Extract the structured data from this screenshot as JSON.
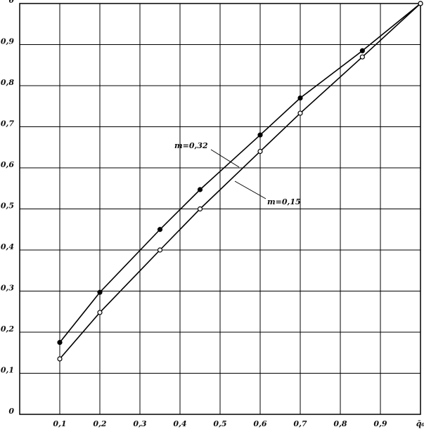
{
  "chart_data": {
    "type": "line",
    "x": [
      0.1,
      0.2,
      0.35,
      0.45,
      0.6,
      0.7,
      0.855,
      1
    ],
    "series": [
      {
        "name": "m=0,32",
        "color": "#000000",
        "marker": "filled",
        "values": [
          0.175,
          0.297,
          0.45,
          0.547,
          0.68,
          0.77,
          0.885,
          1
        ]
      },
      {
        "name": "m=0,15",
        "color": "#000000",
        "marker": "open",
        "values": [
          0.135,
          0.248,
          0.4,
          0.5,
          0.64,
          0.733,
          0.87,
          1
        ]
      }
    ],
    "xlim": [
      0,
      1
    ],
    "xticks": [
      {
        "value": 0.1,
        "label": "0,1"
      },
      {
        "value": 0.2,
        "label": "0,2"
      },
      {
        "value": 0.3,
        "label": "0,3"
      },
      {
        "value": 0.4,
        "label": "0,4"
      },
      {
        "value": 0.5,
        "label": "0,5"
      },
      {
        "value": 0.6,
        "label": "0,6"
      },
      {
        "value": 0.7,
        "label": "0,7"
      },
      {
        "value": 0.8,
        "label": "0,8"
      },
      {
        "value": 0.9,
        "label": "0,9"
      },
      {
        "value": 1,
        "label": "q̄₀"
      }
    ],
    "ylim": [
      0,
      1
    ],
    "yticks": [
      {
        "value": 0,
        "label": "0"
      },
      {
        "value": 0.1,
        "label": "0,1"
      },
      {
        "value": 0.2,
        "label": "0,2"
      },
      {
        "value": 0.3,
        "label": "0,3"
      },
      {
        "value": 0.4,
        "label": "0,4"
      },
      {
        "value": 0.5,
        "label": "0,5"
      },
      {
        "value": 0.6,
        "label": "0,6"
      },
      {
        "value": 0.7,
        "label": "0,7"
      },
      {
        "value": 0.8,
        "label": "0,8"
      },
      {
        "value": 0.9,
        "label": "0,9"
      },
      {
        "value": 1,
        "label": "θ"
      }
    ],
    "grid": true
  }
}
